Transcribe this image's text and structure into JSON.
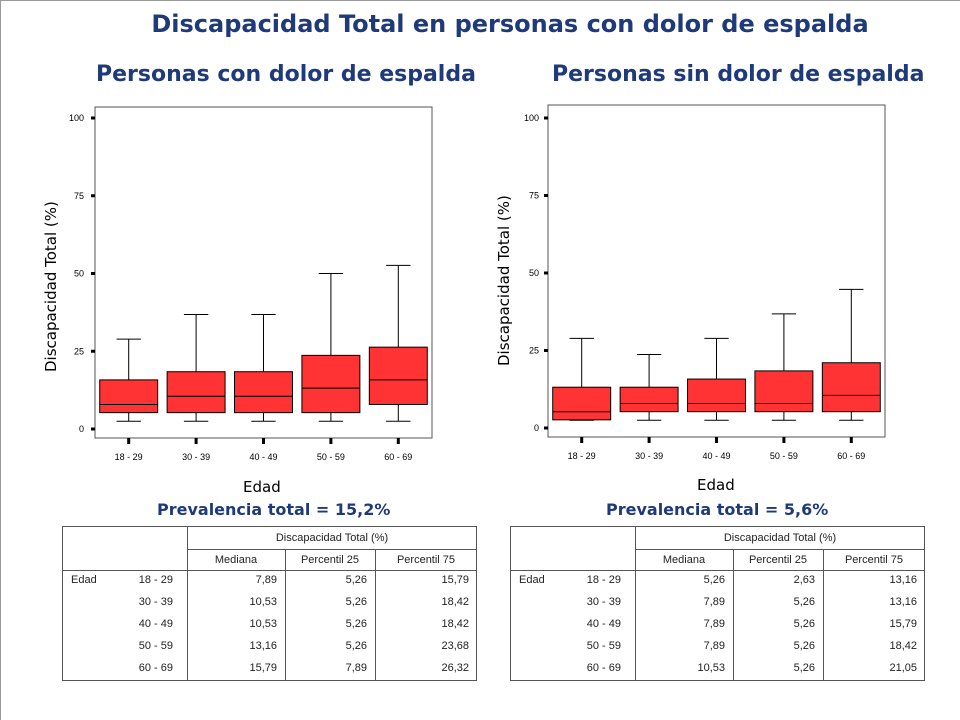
{
  "title": "Discapacidad Total en personas con dolor de espalda",
  "panels": [
    {
      "title": "Personas con dolor de espalda",
      "ylabel": "Discapacidad Total (%)",
      "xlabel": "Edad",
      "prevalence": "Prevalencia total = 15,2%"
    },
    {
      "title": "Personas sin dolor de espalda",
      "ylabel": "Discapacidad Total (%)",
      "xlabel": "Edad",
      "prevalence": "Prevalencia total = 5,6%"
    }
  ],
  "chart_data": [
    {
      "type": "boxplot",
      "title": "Personas con dolor de espalda",
      "xlabel": "Edad",
      "ylabel": "Discapacidad Total (%)",
      "ylim": [
        0,
        100
      ],
      "yticks": [
        "0",
        "25",
        "50",
        "75",
        "100"
      ],
      "categories": [
        "18 - 29",
        "30 - 39",
        "40 - 49",
        "50 - 59",
        "60 - 69"
      ],
      "boxes": [
        {
          "min": 2.5,
          "q1": 5.26,
          "median": 7.89,
          "q3": 15.79,
          "max": 28.9
        },
        {
          "min": 2.5,
          "q1": 5.26,
          "median": 10.53,
          "q3": 18.42,
          "max": 36.8
        },
        {
          "min": 2.5,
          "q1": 5.26,
          "median": 10.53,
          "q3": 18.42,
          "max": 36.8
        },
        {
          "min": 2.5,
          "q1": 5.26,
          "median": 13.16,
          "q3": 23.68,
          "max": 50.0
        },
        {
          "min": 2.5,
          "q1": 7.89,
          "median": 15.79,
          "q3": 26.32,
          "max": 52.6
        }
      ],
      "box_color": "#ff3333"
    },
    {
      "type": "boxplot",
      "title": "Personas sin dolor de espalda",
      "xlabel": "Edad",
      "ylabel": "Discapacidad Total (%)",
      "ylim": [
        0,
        100
      ],
      "yticks": [
        "0",
        "25",
        "50",
        "75",
        "100"
      ],
      "categories": [
        "18 - 29",
        "30 - 39",
        "40 - 49",
        "50 - 59",
        "60 - 69"
      ],
      "boxes": [
        {
          "min": 2.5,
          "q1": 2.63,
          "median": 5.26,
          "q3": 13.16,
          "max": 28.9
        },
        {
          "min": 2.5,
          "q1": 5.26,
          "median": 7.89,
          "q3": 13.16,
          "max": 23.7
        },
        {
          "min": 2.5,
          "q1": 5.26,
          "median": 7.89,
          "q3": 15.79,
          "max": 28.9
        },
        {
          "min": 2.5,
          "q1": 5.26,
          "median": 7.89,
          "q3": 18.42,
          "max": 36.8
        },
        {
          "min": 2.5,
          "q1": 5.26,
          "median": 10.53,
          "q3": 21.05,
          "max": 44.7
        }
      ],
      "box_color": "#ff3333"
    }
  ],
  "tables": [
    {
      "group_header": "Discapacidad Total (%)",
      "columns": [
        "Mediana",
        "Percentil 25",
        "Percentil 75"
      ],
      "row_group": "Edad",
      "rows": [
        {
          "label": "18 - 29",
          "values": [
            "7,89",
            "5,26",
            "15,79"
          ]
        },
        {
          "label": "30 - 39",
          "values": [
            "10,53",
            "5,26",
            "18,42"
          ]
        },
        {
          "label": "40 - 49",
          "values": [
            "10,53",
            "5,26",
            "18,42"
          ]
        },
        {
          "label": "50 - 59",
          "values": [
            "13,16",
            "5,26",
            "23,68"
          ]
        },
        {
          "label": "60 - 69",
          "values": [
            "15,79",
            "7,89",
            "26,32"
          ]
        }
      ]
    },
    {
      "group_header": "Discapacidad Total (%)",
      "columns": [
        "Mediana",
        "Percentil 25",
        "Percentil 75"
      ],
      "row_group": "Edad",
      "rows": [
        {
          "label": "18 - 29",
          "values": [
            "5,26",
            "2,63",
            "13,16"
          ]
        },
        {
          "label": "30 - 39",
          "values": [
            "7,89",
            "5,26",
            "13,16"
          ]
        },
        {
          "label": "40 - 49",
          "values": [
            "7,89",
            "5,26",
            "15,79"
          ]
        },
        {
          "label": "50 - 59",
          "values": [
            "7,89",
            "5,26",
            "18,42"
          ]
        },
        {
          "label": "60 - 69",
          "values": [
            "10,53",
            "5,26",
            "21,05"
          ]
        }
      ]
    }
  ]
}
